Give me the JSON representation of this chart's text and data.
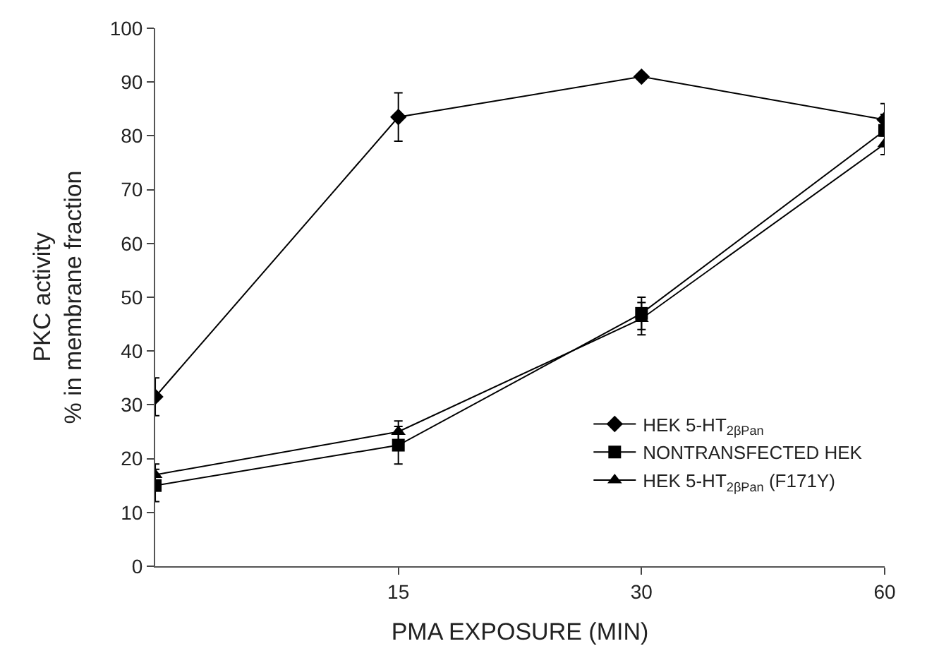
{
  "chart_data": {
    "type": "line",
    "xlabel": "PMA EXPOSURE (MIN)",
    "ylabel": "PKC activity\n% in membrane fraction",
    "categories": [
      null,
      "15",
      "30",
      "60"
    ],
    "ylim": [
      0,
      100
    ],
    "yticks": [
      0,
      10,
      20,
      30,
      40,
      50,
      60,
      70,
      80,
      90,
      100
    ],
    "legend": "bottom right",
    "line_style": "solid",
    "series": [
      {
        "name": "HEK 5-HT$_{2βPan}$",
        "color": "#000000",
        "marker": "diamond",
        "values": [
          31.5,
          83.5,
          91,
          83
        ],
        "errors": [
          3.5,
          4.5,
          null,
          3
        ]
      },
      {
        "name": "NONTRANSFECTED HEK",
        "color": "#000000",
        "marker": "square",
        "values": [
          15,
          22.5,
          47,
          81
        ],
        "errors": [
          3,
          3.5,
          3,
          3
        ]
      },
      {
        "name": "HEK 5-HT$_{2βPan}$ (F171Y)",
        "color": "#000000",
        "marker": "triangle",
        "values": [
          17,
          25,
          46,
          78.5
        ],
        "errors": [
          2,
          2,
          3,
          2
        ]
      }
    ]
  }
}
